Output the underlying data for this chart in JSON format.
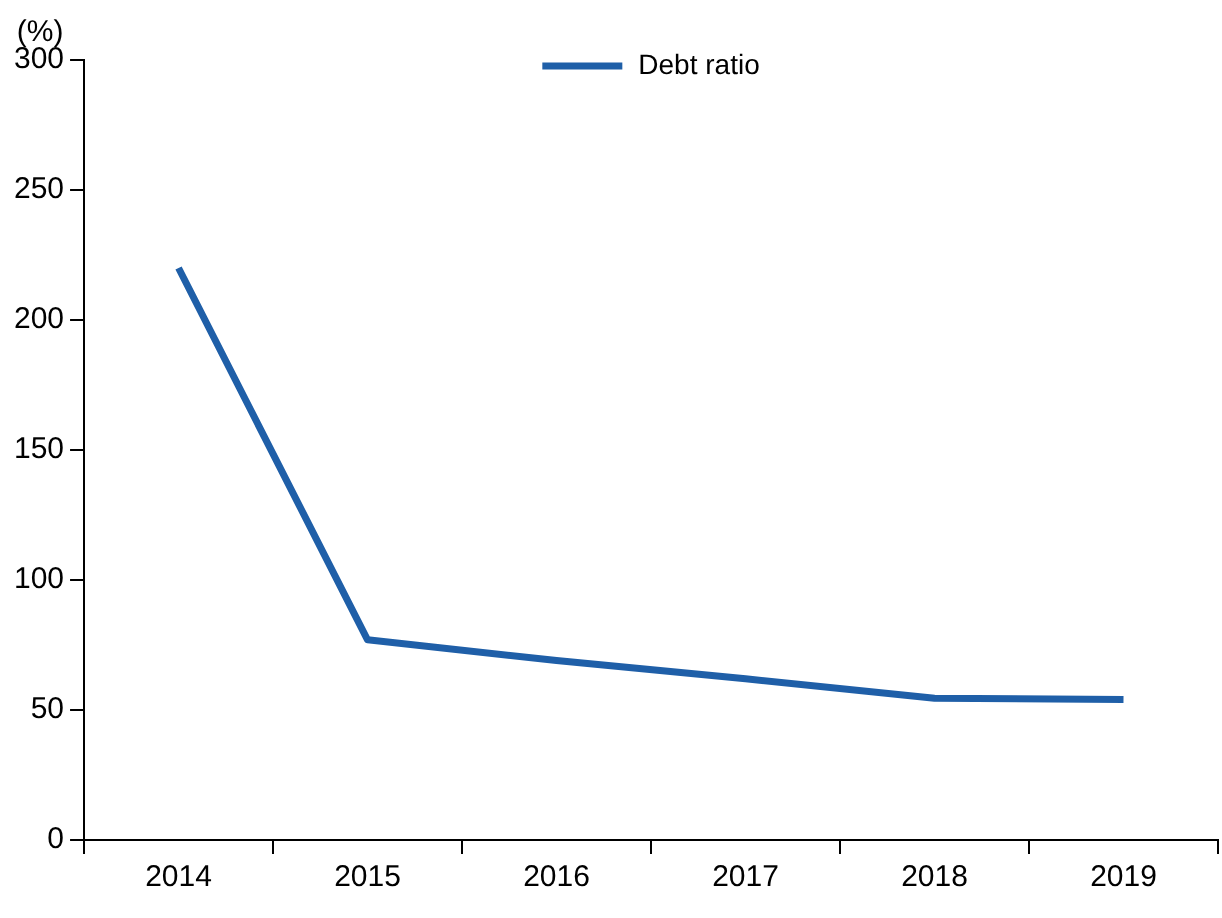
{
  "chart_data": {
    "type": "line",
    "ylabel": "(%)",
    "categories": [
      "2014",
      "2015",
      "2016",
      "2017",
      "2018",
      "2019"
    ],
    "series": [
      {
        "name": "Debt ratio",
        "color": "#1f5fa8",
        "values": [
          220,
          77,
          69,
          62,
          54.5,
          54
        ]
      }
    ],
    "ylim": [
      0,
      300
    ],
    "yticks": [
      0,
      50,
      100,
      150,
      200,
      250,
      300
    ],
    "grid": false,
    "legend": "top",
    "marker": "none",
    "line_style": "solid"
  }
}
